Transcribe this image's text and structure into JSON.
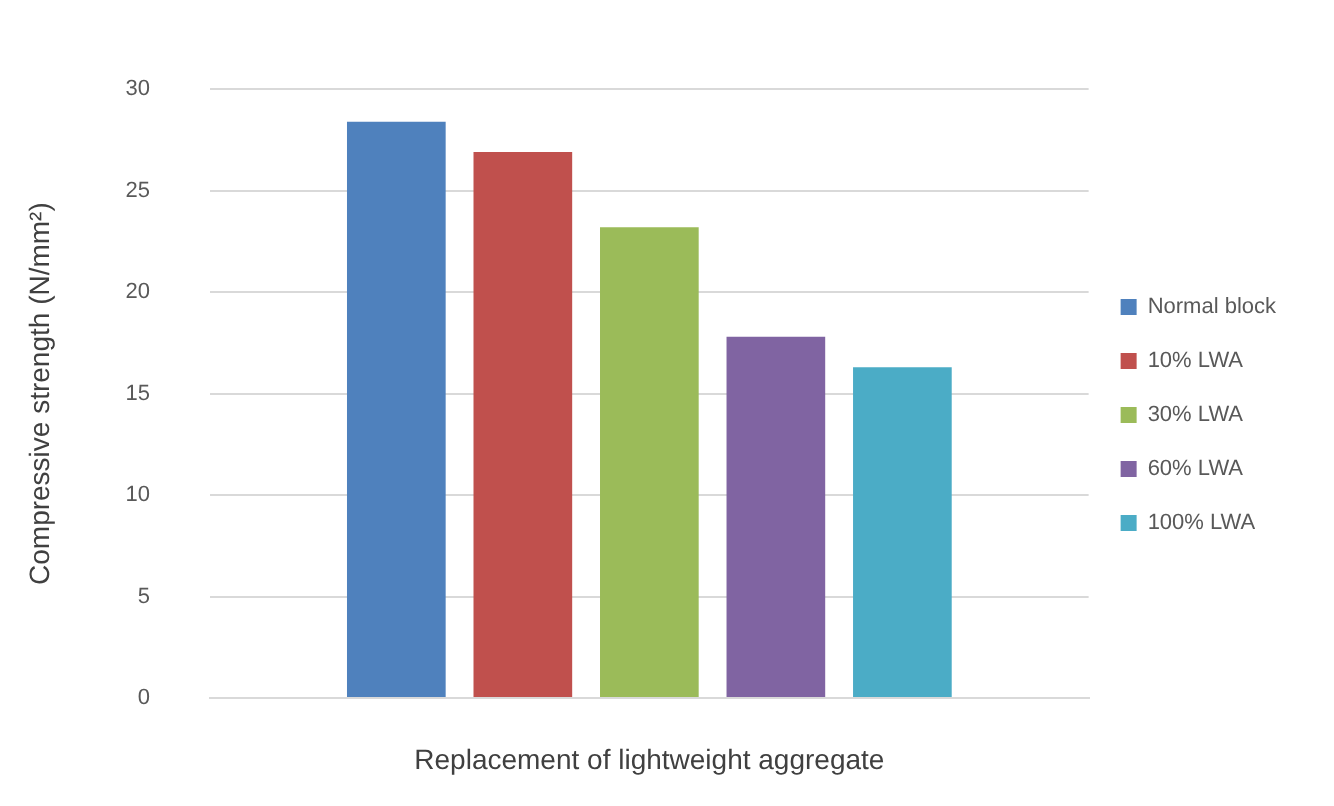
{
  "chart_data": {
    "type": "bar",
    "xlabel": "Replacement of lightweight aggregate",
    "ylabel": "Compressive strength (N/mm²)",
    "categories": [
      null
    ],
    "series": [
      {
        "name": "Normal block",
        "color": "#4f81bd",
        "values": [
          28.4
        ]
      },
      {
        "name": "10% LWA",
        "color": "#c0504d",
        "values": [
          26.9
        ]
      },
      {
        "name": "30% LWA",
        "color": "#9bbb59",
        "values": [
          23.2
        ]
      },
      {
        "name": "60% LWA",
        "color": "#8064a2",
        "values": [
          17.8
        ]
      },
      {
        "name": "100% LWA",
        "color": "#4bacc6",
        "values": [
          16.3
        ]
      }
    ],
    "ylim": [
      0,
      30
    ],
    "yticks": [
      0,
      5,
      10,
      15,
      20,
      25,
      30
    ],
    "grid": "y",
    "legend": "right"
  }
}
